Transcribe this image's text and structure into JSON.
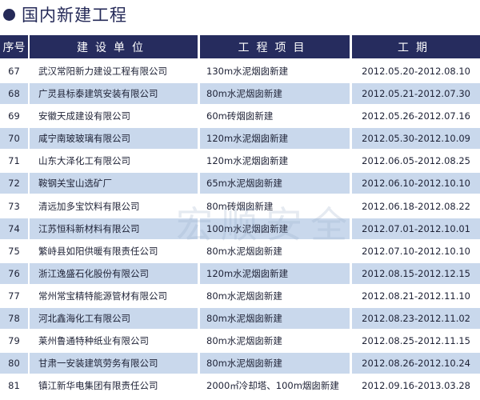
{
  "title": "国内新建工程",
  "watermark": "宏顺安全",
  "colors": {
    "header_bg": "#262c5e",
    "alt_row_bg": "#c9d8ec"
  },
  "headers": [
    "序号",
    "建设单位",
    "工程项目",
    "工期"
  ],
  "rows": [
    {
      "no": "67",
      "unit": "武汉常阳新力建设工程有限公司",
      "project": "130m水泥烟囱新建",
      "period": "2012.05.20-2012.08.10"
    },
    {
      "no": "68",
      "unit": "广灵县标泰建筑安装有限公司",
      "project": "80m水泥烟囱新建",
      "period": "2012.05.21-2012.07.30"
    },
    {
      "no": "69",
      "unit": "安徽天成建设有限公司",
      "project": "60m砖烟囱新建",
      "period": "2012.05.26-2012.07.16"
    },
    {
      "no": "70",
      "unit": "咸宁南玻玻璃有限公司",
      "project": "120m水泥烟囱新建",
      "period": "2012.05.30-2012.10.09"
    },
    {
      "no": "71",
      "unit": "山东大泽化工有限公司",
      "project": "120m水泥烟囱新建",
      "period": "2012.06.05-2012.08.25"
    },
    {
      "no": "72",
      "unit": "鞍钢关宝山选矿厂",
      "project": "65m水泥烟囱新建",
      "period": "2012.06.10-2012.10.10"
    },
    {
      "no": "73",
      "unit": "清远加多宝饮料有限公司",
      "project": "80m砖烟囱新建",
      "period": "2012.06.18-2012.08.22"
    },
    {
      "no": "74",
      "unit": "江苏恒科新材料有限公司",
      "project": "100m水泥烟囱新建",
      "period": "2012.07.01-2012.10.01"
    },
    {
      "no": "75",
      "unit": "繁峙县如阳供暖有限责任公司",
      "project": "80m水泥烟囱新建",
      "period": "2012.07.10-2012.10.10"
    },
    {
      "no": "76",
      "unit": "浙江逸盛石化股份有限公司",
      "project": "120m水泥烟囱新建",
      "period": "2012.08.15-2012.12.15"
    },
    {
      "no": "77",
      "unit": "常州常宝精特能源管材有限公司",
      "project": "80m水泥烟囱新建",
      "period": "2012.08.21-2012.11.10"
    },
    {
      "no": "78",
      "unit": "河北鑫海化工有限公司",
      "project": "80m水泥烟囱新建",
      "period": "2012.08.23-2012.11.02"
    },
    {
      "no": "79",
      "unit": "莱州鲁通特种纸业有限公司",
      "project": "80m水泥烟囱新建",
      "period": "2012.08.25-2012.11.15"
    },
    {
      "no": "80",
      "unit": "甘肃一安装建筑劳务有限公司",
      "project": "80m水泥烟囱新建",
      "period": "2012.08.26-2012.10.24"
    },
    {
      "no": "81",
      "unit": "镇江新华电集团有限责任公司",
      "project": "2000㎡冷却塔、100m烟囱新建",
      "period": "2012.09.16-2013.03.28"
    }
  ]
}
